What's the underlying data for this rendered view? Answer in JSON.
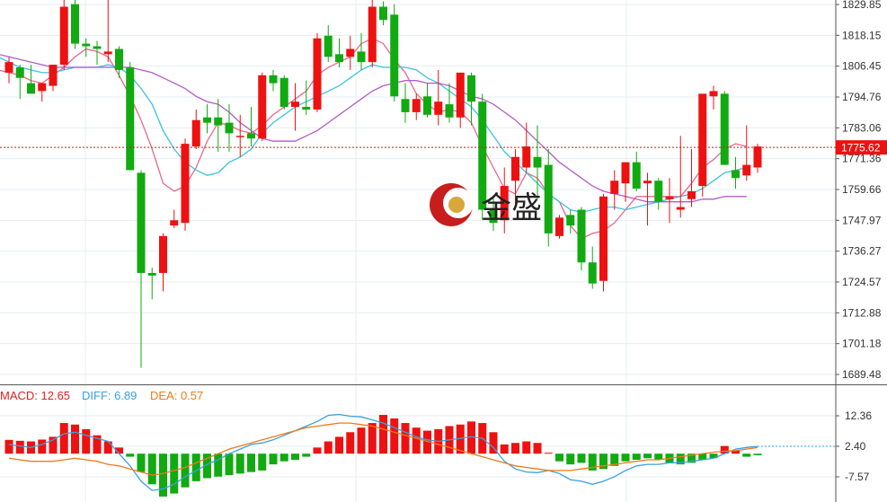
{
  "logo": {
    "text": "金盛"
  },
  "colors": {
    "up": "#ee1111",
    "down": "#11aa11",
    "ma5": "#e8698a",
    "ma10": "#3cc3dd",
    "ma20": "#b35bc8",
    "diff": "#3aa0e0",
    "dea": "#f07a1a",
    "price_line": "#ee1111"
  },
  "price_axis": {
    "ticks": [
      "1829.85",
      "1818.15",
      "1806.45",
      "1794.76",
      "1783.06",
      "1771.36",
      "1759.66",
      "1747.97",
      "1736.27",
      "1724.57",
      "1712.88",
      "1701.18",
      "1689.48"
    ]
  },
  "current_price": {
    "label": "1775.62",
    "value": 1775.62
  },
  "macd_axis": {
    "ticks": [
      "12.36",
      "2.40",
      "-7.57"
    ]
  },
  "macd_legend": {
    "macd": "MACD: 12.65",
    "diff": "DIFF: 6.89",
    "dea": "DEA: 0.57"
  },
  "chart_data": [
    {
      "type": "candlestick",
      "title": "",
      "ylim": [
        1687,
        1832
      ],
      "grid": true,
      "candles": [
        {
          "o": 1804,
          "h": 1810,
          "l": 1800,
          "c": 1808
        },
        {
          "o": 1806,
          "h": 1807,
          "l": 1794,
          "c": 1802
        },
        {
          "o": 1800,
          "h": 1807,
          "l": 1797,
          "c": 1796
        },
        {
          "o": 1797,
          "h": 1800,
          "l": 1793,
          "c": 1800
        },
        {
          "o": 1799,
          "h": 1807,
          "l": 1797,
          "c": 1807
        },
        {
          "o": 1807,
          "h": 1832,
          "l": 1805,
          "c": 1829
        },
        {
          "o": 1830,
          "h": 1832,
          "l": 1813,
          "c": 1815
        },
        {
          "o": 1815,
          "h": 1817,
          "l": 1810,
          "c": 1814
        },
        {
          "o": 1814,
          "h": 1816,
          "l": 1807,
          "c": 1813
        },
        {
          "o": 1811,
          "h": 1833,
          "l": 1808,
          "c": 1812
        },
        {
          "o": 1813,
          "h": 1814,
          "l": 1802,
          "c": 1805
        },
        {
          "o": 1806,
          "h": 1808,
          "l": 1768,
          "c": 1767
        },
        {
          "o": 1766,
          "h": 1767,
          "l": 1692,
          "c": 1728
        },
        {
          "o": 1728,
          "h": 1730,
          "l": 1718,
          "c": 1727
        },
        {
          "o": 1728,
          "h": 1743,
          "l": 1721,
          "c": 1742
        },
        {
          "o": 1746,
          "h": 1752,
          "l": 1745,
          "c": 1748
        },
        {
          "o": 1747,
          "h": 1779,
          "l": 1744,
          "c": 1777
        },
        {
          "o": 1776,
          "h": 1790,
          "l": 1775,
          "c": 1786
        },
        {
          "o": 1787,
          "h": 1792,
          "l": 1781,
          "c": 1785
        },
        {
          "o": 1787,
          "h": 1794,
          "l": 1774,
          "c": 1784
        },
        {
          "o": 1785,
          "h": 1792,
          "l": 1774,
          "c": 1781
        },
        {
          "o": 1780,
          "h": 1788,
          "l": 1772,
          "c": 1780
        },
        {
          "o": 1781,
          "h": 1791,
          "l": 1776,
          "c": 1779
        },
        {
          "o": 1779,
          "h": 1804,
          "l": 1778,
          "c": 1803
        },
        {
          "o": 1803,
          "h": 1805,
          "l": 1797,
          "c": 1800
        },
        {
          "o": 1802,
          "h": 1803,
          "l": 1790,
          "c": 1791
        },
        {
          "o": 1791,
          "h": 1800,
          "l": 1782,
          "c": 1793
        },
        {
          "o": 1791,
          "h": 1801,
          "l": 1788,
          "c": 1790
        },
        {
          "o": 1790,
          "h": 1819,
          "l": 1789,
          "c": 1817
        },
        {
          "o": 1818,
          "h": 1822,
          "l": 1808,
          "c": 1810
        },
        {
          "o": 1811,
          "h": 1817,
          "l": 1806,
          "c": 1808
        },
        {
          "o": 1810,
          "h": 1818,
          "l": 1805,
          "c": 1813
        },
        {
          "o": 1812,
          "h": 1819,
          "l": 1805,
          "c": 1808
        },
        {
          "o": 1808,
          "h": 1832,
          "l": 1806,
          "c": 1829
        },
        {
          "o": 1829,
          "h": 1831,
          "l": 1822,
          "c": 1824
        },
        {
          "o": 1826,
          "h": 1830,
          "l": 1793,
          "c": 1795
        },
        {
          "o": 1794,
          "h": 1800,
          "l": 1785,
          "c": 1789
        },
        {
          "o": 1789,
          "h": 1796,
          "l": 1786,
          "c": 1794
        },
        {
          "o": 1795,
          "h": 1800,
          "l": 1787,
          "c": 1788
        },
        {
          "o": 1788,
          "h": 1805,
          "l": 1784,
          "c": 1793
        },
        {
          "o": 1792,
          "h": 1800,
          "l": 1785,
          "c": 1787
        },
        {
          "o": 1787,
          "h": 1803,
          "l": 1783,
          "c": 1804
        },
        {
          "o": 1803,
          "h": 1804,
          "l": 1784,
          "c": 1793
        },
        {
          "o": 1793,
          "h": 1796,
          "l": 1748,
          "c": 1752
        },
        {
          "o": 1752,
          "h": 1757,
          "l": 1744,
          "c": 1747
        },
        {
          "o": 1748,
          "h": 1768,
          "l": 1743,
          "c": 1761
        },
        {
          "o": 1763,
          "h": 1775,
          "l": 1752,
          "c": 1772
        },
        {
          "o": 1768,
          "h": 1785,
          "l": 1766,
          "c": 1776
        },
        {
          "o": 1772,
          "h": 1784,
          "l": 1756,
          "c": 1768
        },
        {
          "o": 1769,
          "h": 1775,
          "l": 1738,
          "c": 1743
        },
        {
          "o": 1742,
          "h": 1750,
          "l": 1741,
          "c": 1749
        },
        {
          "o": 1750,
          "h": 1752,
          "l": 1743,
          "c": 1746
        },
        {
          "o": 1752,
          "h": 1753,
          "l": 1729,
          "c": 1732
        },
        {
          "o": 1732,
          "h": 1738,
          "l": 1722,
          "c": 1724
        },
        {
          "o": 1725,
          "h": 1758,
          "l": 1721,
          "c": 1757
        },
        {
          "o": 1758,
          "h": 1767,
          "l": 1752,
          "c": 1763
        },
        {
          "o": 1762,
          "h": 1770,
          "l": 1755,
          "c": 1770
        },
        {
          "o": 1770,
          "h": 1774,
          "l": 1759,
          "c": 1760
        },
        {
          "o": 1762,
          "h": 1766,
          "l": 1746,
          "c": 1763
        },
        {
          "o": 1763,
          "h": 1764,
          "l": 1752,
          "c": 1755
        },
        {
          "o": 1756,
          "h": 1764,
          "l": 1747,
          "c": 1757
        },
        {
          "o": 1752,
          "h": 1780,
          "l": 1749,
          "c": 1753
        },
        {
          "o": 1756,
          "h": 1775,
          "l": 1753,
          "c": 1759
        },
        {
          "o": 1761,
          "h": 1795,
          "l": 1757,
          "c": 1796
        },
        {
          "o": 1795,
          "h": 1799,
          "l": 1790,
          "c": 1797
        },
        {
          "o": 1796,
          "h": 1797,
          "l": 1769,
          "c": 1769
        },
        {
          "o": 1767,
          "h": 1772,
          "l": 1760,
          "c": 1764
        },
        {
          "o": 1765,
          "h": 1784,
          "l": 1763,
          "c": 1769
        },
        {
          "o": 1768,
          "h": 1777,
          "l": 1766,
          "c": 1776
        }
      ],
      "ma_series": [
        {
          "values": [
            1805,
            1804,
            1803,
            1801,
            1800,
            1803,
            1806,
            1810,
            1813,
            1812,
            1810,
            1803,
            1795,
            1786,
            1775,
            1762,
            1759,
            1761,
            1768,
            1778,
            1785,
            1784,
            1782,
            1781,
            1784,
            1788,
            1791,
            1794,
            1797,
            1803,
            1806,
            1808,
            1810,
            1815,
            1817,
            1815,
            1809,
            1804,
            1796,
            1792,
            1789,
            1790,
            1789,
            1785,
            1776,
            1768,
            1760,
            1758,
            1766,
            1764,
            1758,
            1755,
            1746,
            1741,
            1743,
            1744,
            1747,
            1752,
            1757,
            1757,
            1757,
            1757,
            1757,
            1762,
            1768,
            1771,
            1775,
            1777,
            1776
          ]
        },
        {
          "values": [
            1810,
            1808,
            1806,
            1805,
            1804,
            1804,
            1805,
            1806,
            1806,
            1806,
            1807,
            1806,
            1803,
            1798,
            1792,
            1782,
            1775,
            1770,
            1767,
            1765,
            1766,
            1770,
            1772,
            1775,
            1781,
            1785,
            1788,
            1791,
            1793,
            1795,
            1797,
            1799,
            1802,
            1805,
            1807,
            1806,
            1806,
            1806,
            1805,
            1802,
            1800,
            1797,
            1794,
            1791,
            1786,
            1780,
            1774,
            1770,
            1766,
            1762,
            1758,
            1755,
            1752,
            1751,
            1752,
            1753,
            1753,
            1752,
            1753,
            1754,
            1755,
            1756,
            1757,
            1758,
            1760,
            1763,
            1766,
            1767,
            1768
          ]
        },
        {
          "values": [
            1811,
            1810,
            1809,
            1808,
            1807,
            1806,
            1806,
            1806,
            1806,
            1806,
            1806,
            1806,
            1806,
            1805,
            1804,
            1802,
            1800,
            1798,
            1795,
            1793,
            1792,
            1789,
            1785,
            1782,
            1779,
            1778,
            1778,
            1778,
            1780,
            1782,
            1785,
            1788,
            1791,
            1794,
            1797,
            1799,
            1800,
            1801,
            1801,
            1800,
            1800,
            1799,
            1797,
            1795,
            1794,
            1792,
            1789,
            1786,
            1782,
            1778,
            1774,
            1770,
            1767,
            1764,
            1761,
            1759,
            1758,
            1757,
            1756,
            1755,
            1755,
            1755,
            1755,
            1755,
            1756,
            1756,
            1757,
            1757,
            1757
          ]
        }
      ]
    },
    {
      "type": "bar",
      "title": "MACD",
      "ylim": [
        -15,
        20
      ],
      "values": [
        4.5,
        4.2,
        4.0,
        4.6,
        5.5,
        10.0,
        9.5,
        8.0,
        6.0,
        4.0,
        2.0,
        -1.0,
        -6.0,
        -10.0,
        -14.0,
        -13.0,
        -11.0,
        -9.0,
        -8.0,
        -7.5,
        -7.0,
        -6.5,
        -6.0,
        -5.5,
        -3.5,
        -2.5,
        -2.0,
        -1.0,
        2.0,
        4.0,
        5.5,
        7.0,
        8.5,
        10.0,
        12.65,
        11.5,
        10.0,
        8.5,
        7.5,
        8.0,
        9.0,
        9.5,
        10.5,
        10.0,
        7.0,
        3.0,
        3.5,
        4.0,
        3.5,
        0.3,
        -2.5,
        -3.5,
        -3.0,
        -5.5,
        -5.0,
        -4.0,
        -2.5,
        -2.0,
        -1.5,
        -2.0,
        -3.0,
        -3.5,
        -3.0,
        -2.0,
        -1.5,
        2.5,
        1.0,
        -1.0,
        -0.5
      ],
      "diff": [
        3.0,
        2.5,
        2.0,
        3.0,
        4.5,
        6.5,
        7.0,
        6.0,
        5.0,
        4.0,
        0.0,
        -4.0,
        -9.0,
        -12.0,
        -11.5,
        -10.0,
        -7.5,
        -5.5,
        -3.5,
        -2.0,
        0.0,
        1.5,
        3.0,
        3.5,
        4.5,
        6.0,
        7.5,
        9.0,
        10.5,
        12.5,
        12.8,
        12.2,
        12.0,
        11.0,
        10.0,
        8.5,
        7.0,
        5.5,
        4.5,
        4.0,
        4.5,
        5.0,
        5.5,
        5.0,
        2.0,
        -2.5,
        -5.0,
        -6.0,
        -6.2,
        -5.5,
        -6.5,
        -8.5,
        -9.0,
        -10.0,
        -9.0,
        -7.5,
        -5.5,
        -4.0,
        -3.5,
        -3.5,
        -3.0,
        -3.0,
        -2.5,
        -2.0,
        -1.5,
        0.0,
        1.5,
        2.0,
        2.4
      ],
      "dea": [
        -1.5,
        -2.0,
        -2.5,
        -2.5,
        -2.5,
        -2.0,
        -1.5,
        -2.0,
        -2.5,
        -3.5,
        -4.0,
        -5.0,
        -6.0,
        -7.0,
        -6.5,
        -5.5,
        -4.5,
        -3.0,
        -1.5,
        0.0,
        1.5,
        2.5,
        3.5,
        4.5,
        5.5,
        6.5,
        7.5,
        8.5,
        9.0,
        9.5,
        10.0,
        10.0,
        9.5,
        9.0,
        8.0,
        7.0,
        6.0,
        5.0,
        4.0,
        3.0,
        2.0,
        1.0,
        0.0,
        -1.0,
        -2.0,
        -3.0,
        -4.0,
        -4.5,
        -5.0,
        -5.5,
        -5.5,
        -5.5,
        -5.0,
        -4.5,
        -4.0,
        -3.5,
        -3.0,
        -2.5,
        -2.0,
        -2.0,
        -1.5,
        -1.0,
        -0.5,
        0.0,
        0.5,
        0.8,
        1.0,
        1.5,
        2.0
      ]
    }
  ]
}
